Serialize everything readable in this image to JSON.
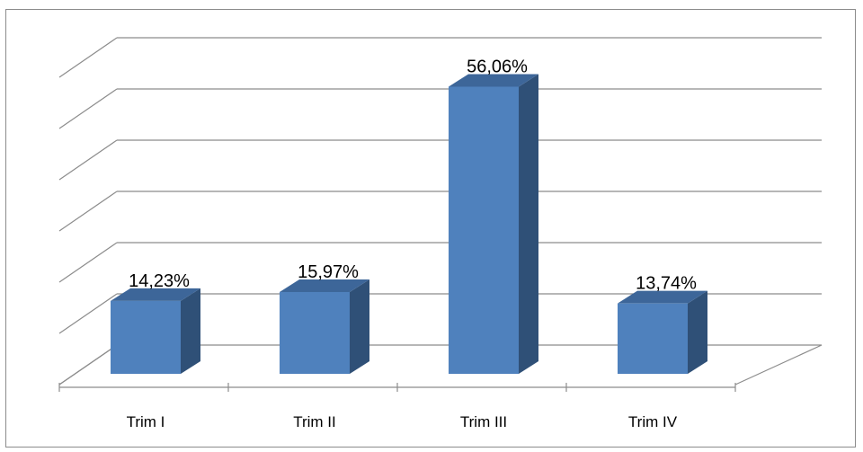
{
  "chart_data": {
    "type": "bar",
    "title": "",
    "xlabel": "",
    "ylabel": "",
    "categories": [
      "Trim I",
      "Trim II",
      "Trim III",
      "Trim IV"
    ],
    "values": [
      14.23,
      15.97,
      56.06,
      13.74
    ],
    "data_labels": [
      "14,23%",
      "15,97%",
      "56,06%",
      "13,74%"
    ],
    "ylim": [
      0,
      60
    ],
    "y_gridline_step": 10,
    "y_tick_labels_shown": false,
    "grid": true,
    "legend": "none",
    "style": "3d-column",
    "colors": {
      "bar_front": "#4f81bd",
      "bar_side": "#2f5077",
      "bar_top": "#3d6699",
      "gridline": "#8c8c8c",
      "axis": "#8c8c8c",
      "frame": "#8c8c8c"
    }
  }
}
